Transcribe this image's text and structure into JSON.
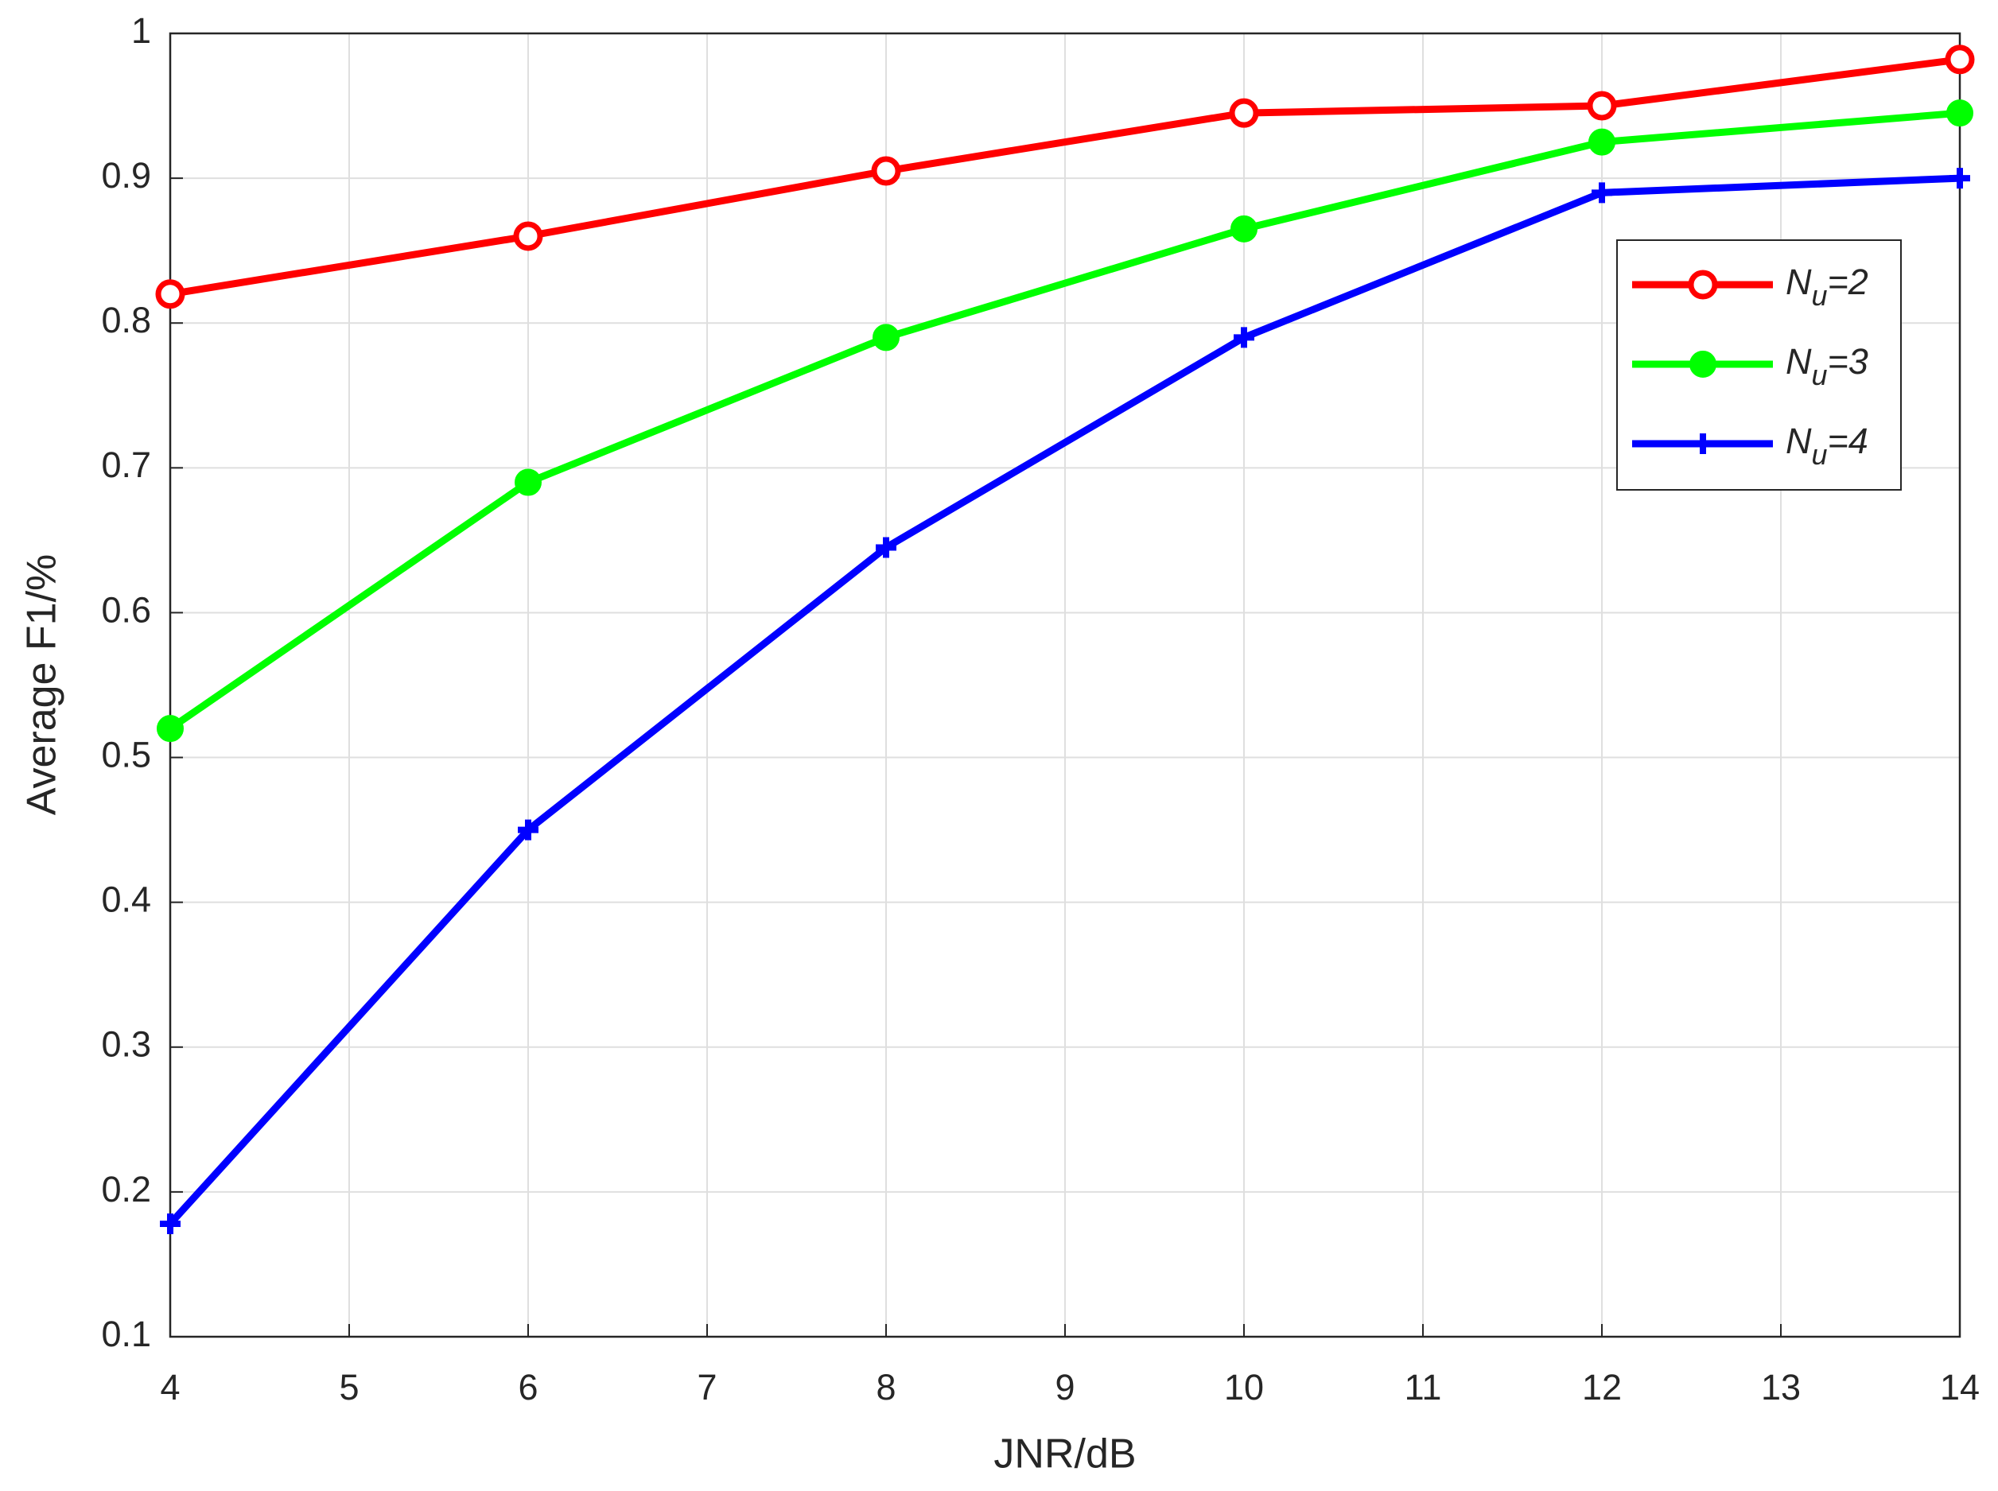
{
  "chart_data": {
    "type": "line",
    "x_label": "JNR/dB",
    "y_label": "Average F1/%",
    "x": [
      4,
      6,
      8,
      10,
      12,
      14
    ],
    "series": [
      {
        "name": "Nu=2",
        "color": "#ff0000",
        "marker": "open-circle",
        "values": [
          0.82,
          0.86,
          0.905,
          0.945,
          0.95,
          0.982
        ]
      },
      {
        "name": "Nu=3",
        "color": "#00ff00",
        "marker": "filled-circle",
        "values": [
          0.52,
          0.69,
          0.79,
          0.865,
          0.925,
          0.945
        ]
      },
      {
        "name": "Nu=4",
        "color": "#0000ff",
        "marker": "plus",
        "values": [
          0.178,
          0.45,
          0.645,
          0.79,
          0.89,
          0.9
        ]
      }
    ],
    "xlim": [
      4,
      14
    ],
    "xticks": [
      4,
      5,
      6,
      7,
      8,
      9,
      10,
      11,
      12,
      13,
      14
    ],
    "ylim": [
      0.1,
      1
    ],
    "yticks": [
      0.1,
      0.2,
      0.3,
      0.4,
      0.5,
      0.6,
      0.7,
      0.8,
      0.9,
      1
    ],
    "grid": true,
    "legend_position": "upper-right"
  }
}
